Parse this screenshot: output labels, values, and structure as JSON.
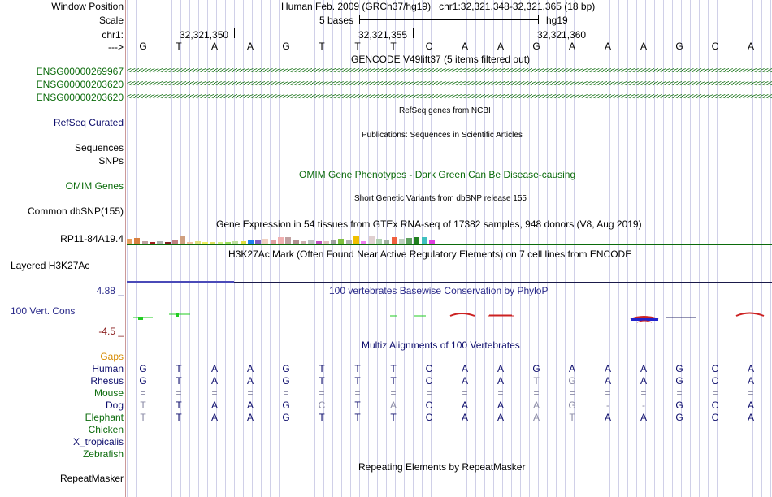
{
  "header": {
    "window_position_label": "Window Position",
    "scale_label": "Scale",
    "chrom_label": "chr1:",
    "arrow_label": "--->",
    "assembly_title": "Human Feb. 2009 (GRCh37/hg19)   chr1:32,321,348-32,321,365 (18 bp)",
    "scale_text": "5 bases",
    "scale_db": "hg19",
    "positions": [
      "32,321,350",
      "32,321,355",
      "32,321,360"
    ]
  },
  "sequence": [
    "G",
    "T",
    "A",
    "A",
    "G",
    "T",
    "T",
    "T",
    "C",
    "A",
    "A",
    "G",
    "A",
    "A",
    "A",
    "G",
    "C",
    "A"
  ],
  "gencode": {
    "title": "GENCODE V49lift37 (5 items filtered out)",
    "genes": [
      "ENSG00000269967",
      "ENSG00000203620",
      "ENSG00000203620"
    ],
    "arrow_glyphs": "<<<<<<<<<<<<<<<<<<<<<<<<<<<<<<<<<<<<<<<<<<<<<<<<<<<<<<<<<<<<<<<<<<<<<<<<<<<<<<<<<<<<<<<<<<<<<<<<<<<<<<<<<<<<<<<<<<<<<<<<<<<<<<<<<<<<<<<<<<<<<<<<<<<<<<<<<<<<<<<<<<<<<"
  },
  "refseq": {
    "title": "RefSeq genes from NCBI",
    "label": "RefSeq Curated"
  },
  "publications": {
    "title": "Publications: Sequences in Scientific Articles",
    "label1": "Sequences",
    "label2": "SNPs"
  },
  "omim": {
    "title": "OMIM Gene Phenotypes - Dark Green Can Be Disease-causing",
    "label": "OMIM Genes"
  },
  "dbsnp": {
    "title": "Short Genetic Variants from dbSNP release 155",
    "label": "Common dbSNP(155)"
  },
  "gtex": {
    "title": "Gene Expression in 54 tissues from GTEx RNA-seq of 17382 samples, 948 donors (V8, Aug 2019)",
    "label": "RP11-84A19.4",
    "tissue_colors": [
      "#e8a060",
      "#d88040",
      "#c0a0a0",
      "#a02020",
      "#b0b0b0",
      "#802020",
      "#c08080",
      "#d0a080",
      "#f0c0a0",
      "#e0e080",
      "#f0f060",
      "#e0e060",
      "#d0f080",
      "#a0e060",
      "#c0e0a0",
      "#e0e040",
      "#2080f0",
      "#8060c0",
      "#f0d0c0",
      "#e0a0a0",
      "#f0b0b0",
      "#c0a0a0",
      "#b09090",
      "#d0b0b0",
      "#c0c0c0",
      "#c050c0",
      "#e0c0c0",
      "#a0a0a0",
      "#80c040",
      "#b0b0b0",
      "#f0c000",
      "#f080f0",
      "#e0d0d0",
      "#b0d0b0",
      "#a0b0a0",
      "#f06040",
      "#c0d0c0",
      "#60a060",
      "#208020",
      "#40c0c0",
      "#e040e0"
    ],
    "tissue_levels": [
      0.55,
      0.7,
      0.25,
      0.15,
      0.3,
      0.2,
      0.35,
      0.9,
      0.2,
      0.25,
      0.15,
      0.15,
      0.2,
      0.15,
      0.25,
      0.3,
      0.5,
      0.35,
      0.55,
      0.35,
      0.8,
      0.8,
      0.45,
      0.3,
      0.4,
      0.3,
      0.3,
      0.45,
      0.6,
      0.4,
      1.0,
      0.25,
      0.95,
      0.55,
      0.4,
      0.8,
      0.55,
      0.65,
      0.8,
      0.75,
      0.35
    ]
  },
  "h3k27ac": {
    "title": "H3K27Ac Mark (Often Found Near Active Regulatory Elements) on 7 cell lines from ENCODE",
    "label": "Layered H3K27Ac"
  },
  "phylop": {
    "title": "100 vertebrates Basewise Conservation by PhyloP",
    "label": "100 Vert. Cons",
    "max": "4.88 _",
    "min": "-4.5 _",
    "positive_color": "#22cc22",
    "negative_color": "#cc2222"
  },
  "multiz": {
    "title": "Multiz Alignments of 100 Vertebrates",
    "gaps_label": "Gaps",
    "species": [
      {
        "name": "Human",
        "bases": [
          "G",
          "T",
          "A",
          "A",
          "G",
          "T",
          "T",
          "T",
          "C",
          "A",
          "A",
          "G",
          "A",
          "A",
          "A",
          "G",
          "C",
          "A"
        ],
        "match": [
          1,
          1,
          1,
          1,
          1,
          1,
          1,
          1,
          1,
          1,
          1,
          1,
          1,
          1,
          1,
          1,
          1,
          1
        ]
      },
      {
        "name": "Rhesus",
        "bases": [
          "G",
          "T",
          "A",
          "A",
          "G",
          "T",
          "T",
          "T",
          "C",
          "A",
          "A",
          "T",
          "G",
          "A",
          "A",
          "G",
          "C",
          "A"
        ],
        "match": [
          1,
          1,
          1,
          1,
          1,
          1,
          1,
          1,
          1,
          1,
          1,
          0,
          0,
          1,
          1,
          1,
          1,
          1
        ]
      },
      {
        "name": "Mouse",
        "bases": [
          "=",
          "=",
          "=",
          "=",
          "=",
          "=",
          "=",
          "=",
          "=",
          "=",
          "=",
          "=",
          "=",
          "=",
          "=",
          "=",
          "=",
          "="
        ],
        "match": [
          0,
          0,
          0,
          0,
          0,
          0,
          0,
          0,
          0,
          0,
          0,
          0,
          0,
          0,
          0,
          0,
          0,
          0
        ]
      },
      {
        "name": "Dog",
        "bases": [
          "T",
          "T",
          "A",
          "A",
          "G",
          "C",
          "T",
          "A",
          "C",
          "A",
          "A",
          "A",
          "G",
          "-",
          "-",
          "G",
          "C",
          "A"
        ],
        "match": [
          0,
          1,
          1,
          1,
          1,
          0,
          1,
          0,
          1,
          1,
          1,
          0,
          0,
          0,
          0,
          1,
          1,
          1
        ]
      },
      {
        "name": "Elephant",
        "bases": [
          "T",
          "T",
          "A",
          "A",
          "G",
          "T",
          "T",
          "T",
          "C",
          "A",
          "A",
          "A",
          "T",
          "A",
          "A",
          "G",
          "C",
          "A"
        ],
        "match": [
          0,
          1,
          1,
          1,
          1,
          1,
          1,
          1,
          1,
          1,
          1,
          0,
          0,
          1,
          1,
          1,
          1,
          1
        ]
      },
      {
        "name": "Chicken",
        "bases": [],
        "match": []
      },
      {
        "name": "X_tropicalis",
        "bases": [],
        "match": []
      },
      {
        "name": "Zebrafish",
        "bases": [],
        "match": []
      }
    ]
  },
  "repeatmasker": {
    "title": "Repeating Elements by RepeatMasker",
    "label": "RepeatMasker"
  }
}
